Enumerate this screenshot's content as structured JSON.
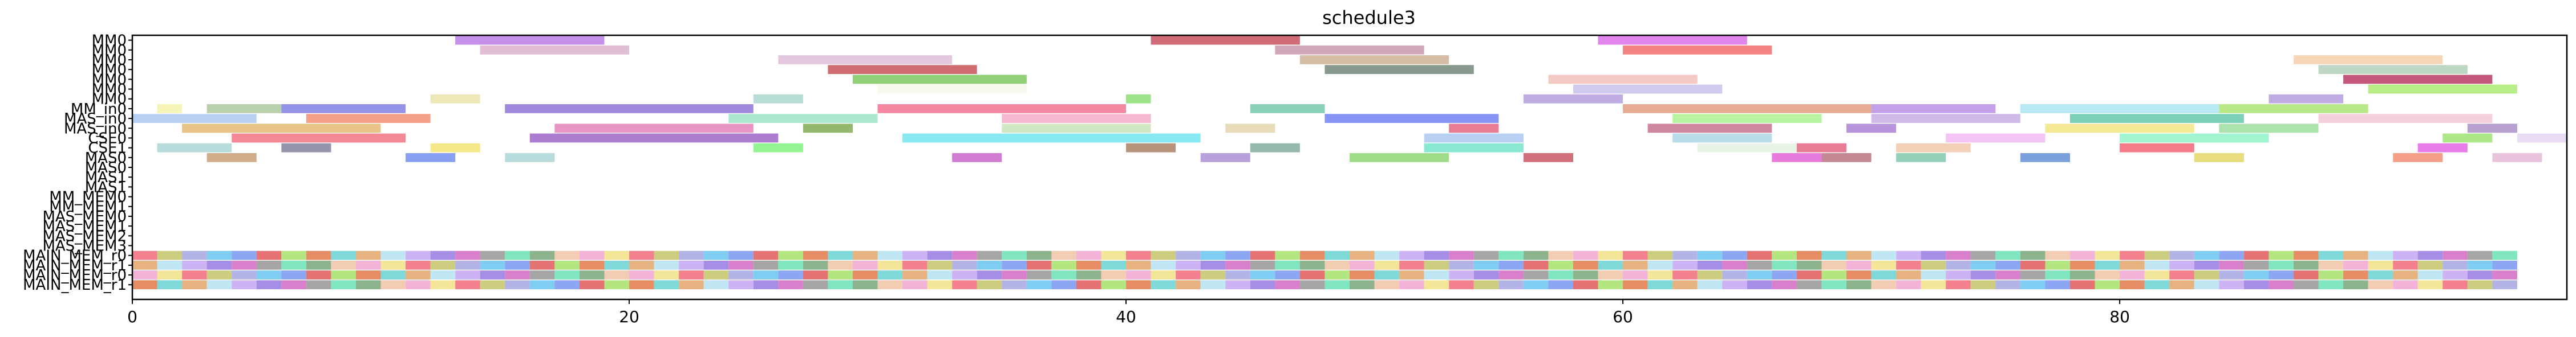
{
  "chart_data": {
    "type": "gantt",
    "title": "schedule3",
    "xlabel": "",
    "ylabel": "",
    "xlim": [
      0,
      98
    ],
    "xticks": [
      0,
      20,
      40,
      60,
      80
    ],
    "grid": false,
    "rows": [
      "MM0",
      "MM0",
      "MM0",
      "MM0",
      "MM0",
      "MM0",
      "MM0",
      "MM_in0",
      "MAS_in0",
      "MAS_in0",
      "CSE0",
      "CSE1",
      "MAS0",
      "MAS0",
      "MAS1",
      "MAS1",
      "MM_MEM0",
      "MM_MEM1",
      "MAS_MEM0",
      "MAS_MEM1",
      "MAS_MEM2",
      "MAS_MEM3",
      "MAIN_MEM_r0",
      "MAIN_MEM_r1",
      "MAIN_MEM_r0",
      "MAIN_MEM_r1"
    ],
    "tasks": [
      {
        "row": 0,
        "start": 13.0,
        "end": 19.0,
        "color": "#b36ae2"
      },
      {
        "row": 0,
        "start": 41.0,
        "end": 47.0,
        "color": "#c0394b"
      },
      {
        "row": 0,
        "start": 59.0,
        "end": 65.0,
        "color": "#d65ee6"
      },
      {
        "row": 1,
        "start": 14.0,
        "end": 20.0,
        "color": "#d7a8c4"
      },
      {
        "row": 1,
        "start": 46.0,
        "end": 52.0,
        "color": "#c08aa0"
      },
      {
        "row": 1,
        "start": 60.0,
        "end": 66.0,
        "color": "#f05a5a"
      },
      {
        "row": 2,
        "start": 26.0,
        "end": 33.0,
        "color": "#d8b4d4"
      },
      {
        "row": 2,
        "start": 47.0,
        "end": 53.0,
        "color": "#c8a888"
      },
      {
        "row": 2,
        "start": 87.0,
        "end": 93.0,
        "color": "#f5c9a0"
      },
      {
        "row": 3,
        "start": 28.0,
        "end": 34.0,
        "color": "#c03c40"
      },
      {
        "row": 3,
        "start": 48.0,
        "end": 54.0,
        "color": "#5f7766"
      },
      {
        "row": 3,
        "start": 88.0,
        "end": 94.0,
        "color": "#a8c8b0"
      },
      {
        "row": 4,
        "start": 29.0,
        "end": 36.0,
        "color": "#6cc04a"
      },
      {
        "row": 4,
        "start": 57.0,
        "end": 63.0,
        "color": "#f0b8b0"
      },
      {
        "row": 4,
        "start": 89.0,
        "end": 95.0,
        "color": "#b02050"
      },
      {
        "row": 5,
        "start": 30.0,
        "end": 36.0,
        "color": "#f4f6e8"
      },
      {
        "row": 5,
        "start": 58.0,
        "end": 64.0,
        "color": "#c0b8e8"
      },
      {
        "row": 5,
        "start": 90.0,
        "end": 96.0,
        "color": "#a0e860"
      },
      {
        "row": 6,
        "start": 12.0,
        "end": 14.0,
        "color": "#e8e0a0"
      },
      {
        "row": 6,
        "start": 25.0,
        "end": 27.0,
        "color": "#a0d0c8"
      },
      {
        "row": 6,
        "start": 40.0,
        "end": 41.0,
        "color": "#7ad860"
      },
      {
        "row": 6,
        "start": 56.0,
        "end": 60.0,
        "color": "#a890d8"
      },
      {
        "row": 6,
        "start": 86.0,
        "end": 89.0,
        "color": "#a890d8"
      },
      {
        "row": 7,
        "start": 1.0,
        "end": 2.0,
        "color": "#f4f0a0"
      },
      {
        "row": 7,
        "start": 3.0,
        "end": 6.0,
        "color": "#a0c090"
      },
      {
        "row": 7,
        "start": 6.0,
        "end": 11.0,
        "color": "#7070e0"
      },
      {
        "row": 7,
        "start": 15.0,
        "end": 25.0,
        "color": "#8060d0"
      },
      {
        "row": 7,
        "start": 30.0,
        "end": 40.0,
        "color": "#f06080"
      },
      {
        "row": 7,
        "start": 45.0,
        "end": 48.0,
        "color": "#60c0a0"
      },
      {
        "row": 7,
        "start": 60.0,
        "end": 70.0,
        "color": "#e09070"
      },
      {
        "row": 7,
        "start": 70.0,
        "end": 75.0,
        "color": "#b080e0"
      },
      {
        "row": 7,
        "start": 76.0,
        "end": 84.0,
        "color": "#a0e0f0"
      },
      {
        "row": 7,
        "start": 84.0,
        "end": 90.0,
        "color": "#a0e060"
      },
      {
        "row": 8,
        "start": 0.0,
        "end": 5.0,
        "color": "#a0c0f0"
      },
      {
        "row": 8,
        "start": 7.0,
        "end": 12.0,
        "color": "#f08060"
      },
      {
        "row": 8,
        "start": 24.0,
        "end": 30.0,
        "color": "#90e0c0"
      },
      {
        "row": 8,
        "start": 35.0,
        "end": 41.0,
        "color": "#f0a0c0"
      },
      {
        "row": 8,
        "start": 48.0,
        "end": 55.0,
        "color": "#6070f0"
      },
      {
        "row": 8,
        "start": 62.0,
        "end": 68.0,
        "color": "#a0f080"
      },
      {
        "row": 8,
        "start": 70.0,
        "end": 76.0,
        "color": "#c0a0e0"
      },
      {
        "row": 8,
        "start": 78.0,
        "end": 85.0,
        "color": "#50c0a0"
      },
      {
        "row": 8,
        "start": 88.0,
        "end": 95.0,
        "color": "#f0c0d0"
      },
      {
        "row": 9,
        "start": 2.0,
        "end": 10.0,
        "color": "#e0b060"
      },
      {
        "row": 9,
        "start": 17.0,
        "end": 25.0,
        "color": "#e070b0"
      },
      {
        "row": 9,
        "start": 27.0,
        "end": 29.0,
        "color": "#70a040"
      },
      {
        "row": 9,
        "start": 35.0,
        "end": 41.0,
        "color": "#c0e0b0"
      },
      {
        "row": 9,
        "start": 44.0,
        "end": 46.0,
        "color": "#e0d0a0"
      },
      {
        "row": 9,
        "start": 53.0,
        "end": 55.0,
        "color": "#e05070"
      },
      {
        "row": 9,
        "start": 61.0,
        "end": 66.0,
        "color": "#c06080"
      },
      {
        "row": 9,
        "start": 69.0,
        "end": 71.0,
        "color": "#a070d0"
      },
      {
        "row": 9,
        "start": 77.0,
        "end": 83.0,
        "color": "#f0e070"
      },
      {
        "row": 9,
        "start": 84.0,
        "end": 88.0,
        "color": "#90d890"
      },
      {
        "row": 9,
        "start": 94.0,
        "end": 96.0,
        "color": "#a080c0"
      },
      {
        "row": 10,
        "start": 4.0,
        "end": 11.0,
        "color": "#f06070"
      },
      {
        "row": 10,
        "start": 16.0,
        "end": 26.0,
        "color": "#9050c0"
      },
      {
        "row": 10,
        "start": 31.0,
        "end": 43.0,
        "color": "#60e0f0"
      },
      {
        "row": 10,
        "start": 52.0,
        "end": 56.0,
        "color": "#a0c0f0"
      },
      {
        "row": 10,
        "start": 62.0,
        "end": 66.0,
        "color": "#a0d0e0"
      },
      {
        "row": 10,
        "start": 73.0,
        "end": 77.0,
        "color": "#f0b0f0"
      },
      {
        "row": 10,
        "start": 80.0,
        "end": 86.0,
        "color": "#80f0c0"
      },
      {
        "row": 10,
        "start": 93.0,
        "end": 95.0,
        "color": "#90e060"
      },
      {
        "row": 10,
        "start": 96.0,
        "end": 98.0,
        "color": "#e0d0f0"
      },
      {
        "row": 11,
        "start": 1.0,
        "end": 4.0,
        "color": "#a0d0d0"
      },
      {
        "row": 11,
        "start": 6.0,
        "end": 8.0,
        "color": "#707090"
      },
      {
        "row": 11,
        "start": 12.0,
        "end": 14.0,
        "color": "#f0e060"
      },
      {
        "row": 11,
        "start": 25.0,
        "end": 27.0,
        "color": "#70f070"
      },
      {
        "row": 11,
        "start": 40.0,
        "end": 42.0,
        "color": "#a07050"
      },
      {
        "row": 11,
        "start": 45.0,
        "end": 47.0,
        "color": "#70a090"
      },
      {
        "row": 11,
        "start": 52.0,
        "end": 56.0,
        "color": "#60e0c0"
      },
      {
        "row": 11,
        "start": 63.0,
        "end": 67.0,
        "color": "#e0f0e0"
      },
      {
        "row": 11,
        "start": 67.0,
        "end": 69.0,
        "color": "#e05070"
      },
      {
        "row": 11,
        "start": 71.0,
        "end": 74.0,
        "color": "#f0c0a0"
      },
      {
        "row": 11,
        "start": 80.0,
        "end": 83.0,
        "color": "#f05060"
      },
      {
        "row": 11,
        "start": 92.0,
        "end": 94.0,
        "color": "#e050e0"
      },
      {
        "row": 12,
        "start": 3.0,
        "end": 5.0,
        "color": "#c09060"
      },
      {
        "row": 12,
        "start": 11.0,
        "end": 13.0,
        "color": "#6080f0"
      },
      {
        "row": 12,
        "start": 15.0,
        "end": 17.0,
        "color": "#a0d0d0"
      },
      {
        "row": 12,
        "start": 33.0,
        "end": 35.0,
        "color": "#c050c0"
      },
      {
        "row": 12,
        "start": 43.0,
        "end": 45.0,
        "color": "#a080d0"
      },
      {
        "row": 12,
        "start": 49.0,
        "end": 53.0,
        "color": "#80d060"
      },
      {
        "row": 12,
        "start": 56.0,
        "end": 58.0,
        "color": "#c04050"
      },
      {
        "row": 12,
        "start": 66.0,
        "end": 68.0,
        "color": "#e050d0"
      },
      {
        "row": 12,
        "start": 68.0,
        "end": 70.0,
        "color": "#b06070"
      },
      {
        "row": 12,
        "start": 71.0,
        "end": 73.0,
        "color": "#70c0a0"
      },
      {
        "row": 12,
        "start": 76.0,
        "end": 78.0,
        "color": "#5080d0"
      },
      {
        "row": 12,
        "start": 83.0,
        "end": 85.0,
        "color": "#e0d050"
      },
      {
        "row": 12,
        "start": 91.0,
        "end": 93.0,
        "color": "#f08060"
      },
      {
        "row": 12,
        "start": 95.0,
        "end": 97.0,
        "color": "#e0b0d0"
      }
    ],
    "memory_rows": [
      22,
      23,
      24,
      25
    ],
    "memory_step": 1,
    "memory_start": 0,
    "memory_end": 96,
    "palette": [
      "#f06070",
      "#60c0f0",
      "#a0e060",
      "#e0a060",
      "#9070e0",
      "#60e0b0",
      "#f0a0d0",
      "#c0c060",
      "#7090f0",
      "#e07040",
      "#b0e0f0",
      "#d060c0",
      "#70a070",
      "#f0e080",
      "#a0a0e0",
      "#e05050",
      "#60d0d0",
      "#c0a0f0",
      "#909090",
      "#f0c0a0"
    ]
  }
}
